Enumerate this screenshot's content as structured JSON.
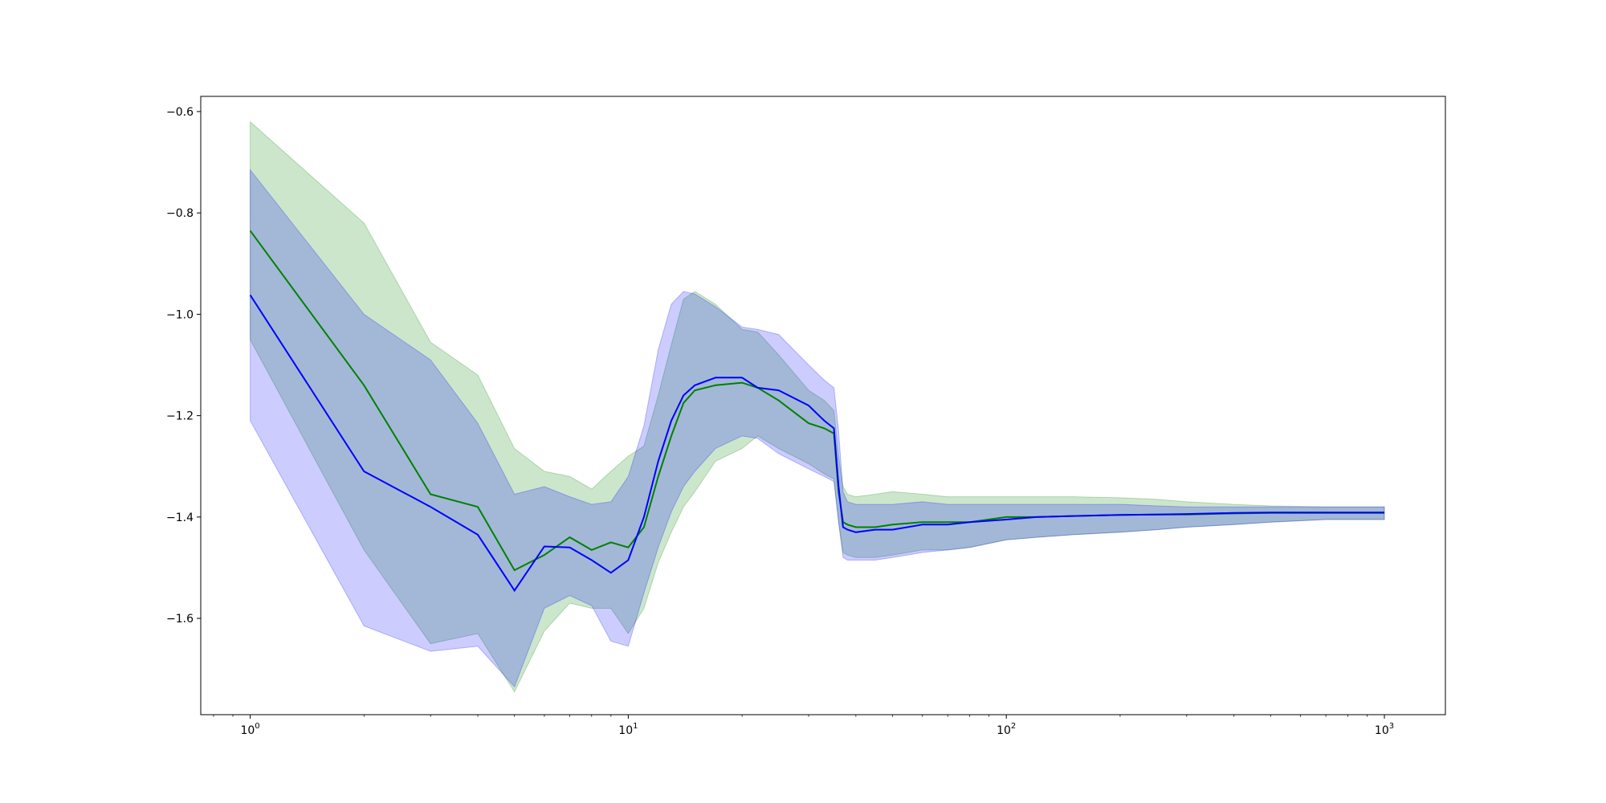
{
  "chart_data": {
    "type": "line",
    "title": "",
    "xlabel": "",
    "ylabel": "",
    "xscale": "log",
    "xlim": [
      0.74,
      1450
    ],
    "ylim": [
      -1.79,
      -0.57
    ],
    "grid": false,
    "legend": null,
    "x_ticks": [
      {
        "value": 1,
        "base": "10",
        "exp": "0"
      },
      {
        "value": 10,
        "base": "10",
        "exp": "1"
      },
      {
        "value": 100,
        "base": "10",
        "exp": "2"
      },
      {
        "value": 1000,
        "base": "10",
        "exp": "3"
      }
    ],
    "y_ticks": [
      {
        "value": -1.6,
        "label": "−1.6"
      },
      {
        "value": -1.4,
        "label": "−1.4"
      },
      {
        "value": -1.2,
        "label": "−1.2"
      },
      {
        "value": -1.0,
        "label": "−1.0"
      },
      {
        "value": -0.8,
        "label": "−0.8"
      },
      {
        "value": -0.6,
        "label": "−0.6"
      }
    ],
    "series": [
      {
        "color": "#008000",
        "band_color": "#008000",
        "band_opacity": 0.2,
        "x": [
          1,
          2,
          3,
          4,
          5,
          6,
          7,
          8,
          9,
          10,
          11,
          12,
          13,
          14,
          15,
          17,
          20,
          22,
          25,
          30,
          33,
          35,
          36,
          37,
          38,
          40,
          45,
          50,
          60,
          70,
          80,
          100,
          120,
          150,
          200,
          250,
          300,
          400,
          500,
          700,
          1000
        ],
        "y": [
          -0.835,
          -1.14,
          -1.355,
          -1.38,
          -1.505,
          -1.475,
          -1.44,
          -1.465,
          -1.45,
          -1.46,
          -1.42,
          -1.32,
          -1.24,
          -1.175,
          -1.15,
          -1.14,
          -1.135,
          -1.145,
          -1.17,
          -1.215,
          -1.225,
          -1.235,
          -1.35,
          -1.41,
          -1.415,
          -1.42,
          -1.42,
          -1.415,
          -1.41,
          -1.41,
          -1.41,
          -1.4,
          -1.4,
          -1.398,
          -1.396,
          -1.395,
          -1.395,
          -1.393,
          -1.392,
          -1.392,
          -1.392
        ],
        "upper": [
          -0.62,
          -0.82,
          -1.055,
          -1.12,
          -1.265,
          -1.31,
          -1.32,
          -1.345,
          -1.31,
          -1.28,
          -1.26,
          -1.16,
          -1.06,
          -0.97,
          -0.955,
          -0.98,
          -1.03,
          -1.035,
          -1.08,
          -1.15,
          -1.17,
          -1.19,
          -1.28,
          -1.34,
          -1.355,
          -1.36,
          -1.355,
          -1.35,
          -1.355,
          -1.36,
          -1.36,
          -1.36,
          -1.36,
          -1.36,
          -1.362,
          -1.365,
          -1.37,
          -1.375,
          -1.378,
          -1.38,
          -1.38
        ],
        "lower": [
          -1.05,
          -1.465,
          -1.65,
          -1.63,
          -1.745,
          -1.625,
          -1.57,
          -1.58,
          -1.58,
          -1.63,
          -1.58,
          -1.49,
          -1.43,
          -1.38,
          -1.35,
          -1.29,
          -1.265,
          -1.24,
          -1.265,
          -1.295,
          -1.315,
          -1.325,
          -1.41,
          -1.47,
          -1.475,
          -1.48,
          -1.48,
          -1.475,
          -1.465,
          -1.465,
          -1.46,
          -1.445,
          -1.44,
          -1.435,
          -1.43,
          -1.425,
          -1.42,
          -1.415,
          -1.41,
          -1.405,
          -1.405
        ]
      },
      {
        "color": "#0000ff",
        "band_color": "#0000ff",
        "band_opacity": 0.2,
        "x": [
          1,
          2,
          3,
          4,
          5,
          6,
          7,
          8,
          9,
          10,
          11,
          12,
          13,
          14,
          15,
          17,
          20,
          22,
          25,
          30,
          33,
          35,
          36,
          37,
          38,
          40,
          45,
          50,
          60,
          70,
          80,
          100,
          120,
          150,
          200,
          250,
          300,
          400,
          500,
          700,
          1000
        ],
        "y": [
          -0.962,
          -1.31,
          -1.38,
          -1.435,
          -1.545,
          -1.458,
          -1.46,
          -1.485,
          -1.51,
          -1.485,
          -1.4,
          -1.29,
          -1.21,
          -1.16,
          -1.14,
          -1.125,
          -1.125,
          -1.145,
          -1.15,
          -1.18,
          -1.21,
          -1.225,
          -1.34,
          -1.42,
          -1.425,
          -1.43,
          -1.425,
          -1.425,
          -1.415,
          -1.415,
          -1.41,
          -1.405,
          -1.4,
          -1.398,
          -1.396,
          -1.395,
          -1.394,
          -1.392,
          -1.391,
          -1.391,
          -1.391
        ],
        "upper": [
          -0.715,
          -1.0,
          -1.09,
          -1.215,
          -1.355,
          -1.34,
          -1.36,
          -1.375,
          -1.37,
          -1.32,
          -1.22,
          -1.07,
          -0.98,
          -0.955,
          -0.96,
          -0.985,
          -1.025,
          -1.03,
          -1.04,
          -1.1,
          -1.13,
          -1.145,
          -1.23,
          -1.35,
          -1.37,
          -1.375,
          -1.375,
          -1.375,
          -1.37,
          -1.375,
          -1.375,
          -1.375,
          -1.375,
          -1.375,
          -1.375,
          -1.378,
          -1.38,
          -1.38,
          -1.38,
          -1.38,
          -1.38
        ],
        "lower": [
          -1.21,
          -1.615,
          -1.665,
          -1.655,
          -1.735,
          -1.58,
          -1.555,
          -1.575,
          -1.645,
          -1.655,
          -1.55,
          -1.46,
          -1.39,
          -1.34,
          -1.31,
          -1.265,
          -1.24,
          -1.245,
          -1.275,
          -1.305,
          -1.32,
          -1.33,
          -1.41,
          -1.48,
          -1.485,
          -1.485,
          -1.485,
          -1.48,
          -1.47,
          -1.465,
          -1.46,
          -1.445,
          -1.44,
          -1.435,
          -1.43,
          -1.425,
          -1.42,
          -1.415,
          -1.41,
          -1.405,
          -1.405
        ]
      }
    ]
  }
}
